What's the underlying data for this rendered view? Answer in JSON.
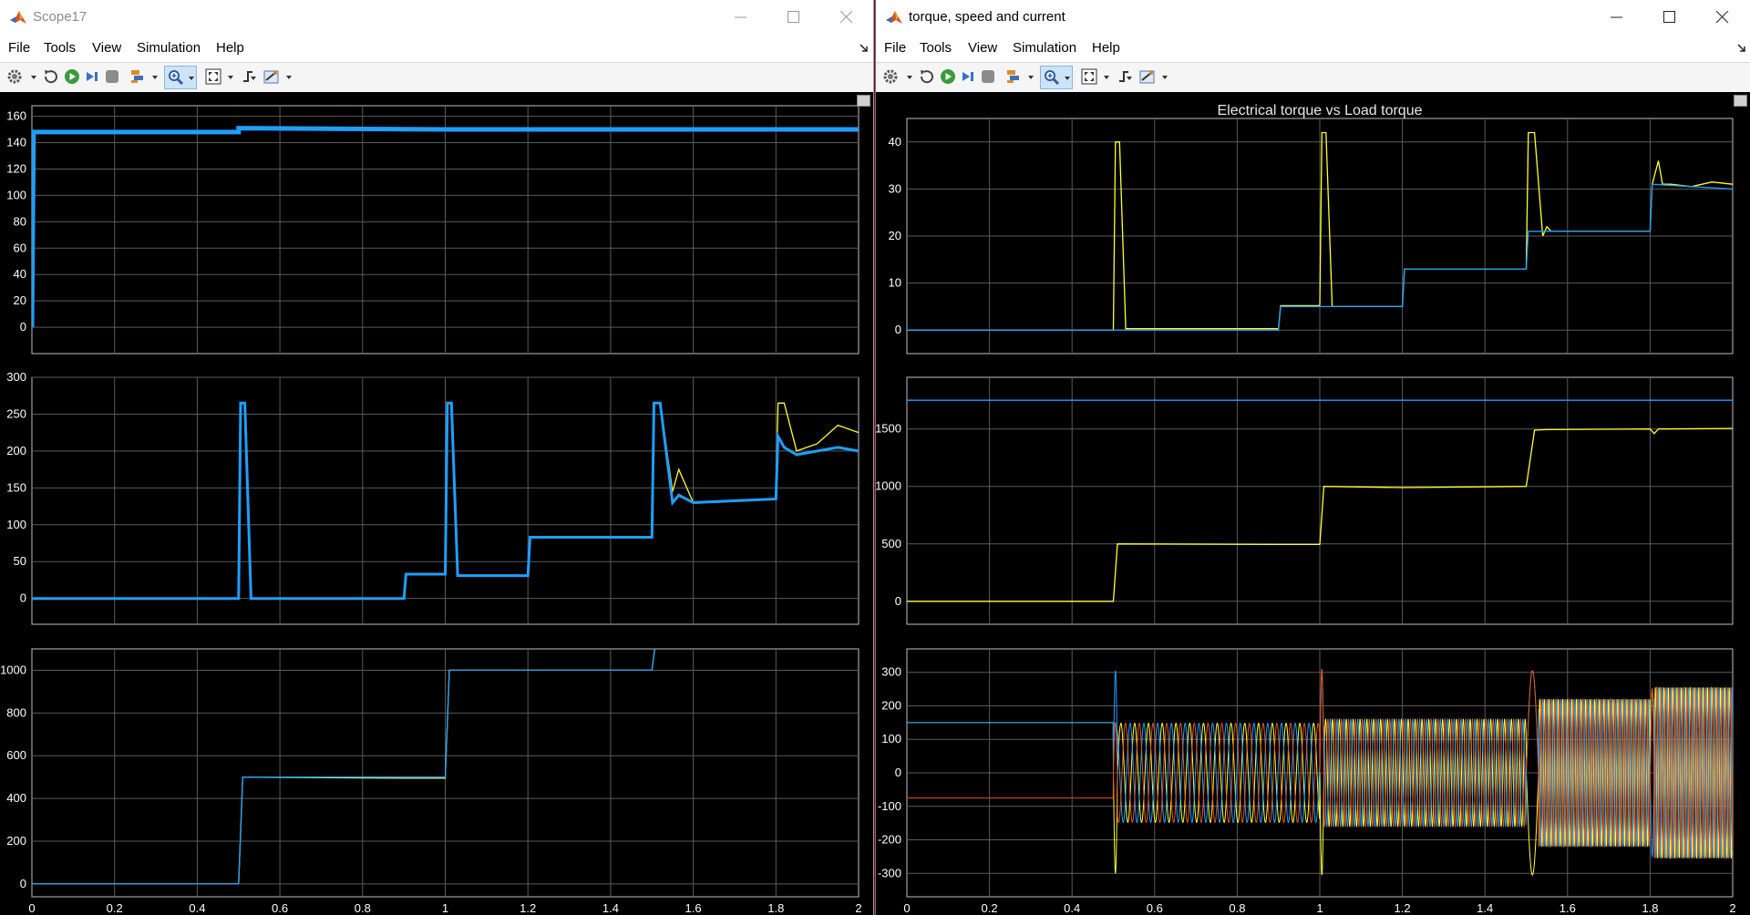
{
  "colors": {
    "blue": "#1e9fff",
    "yellow": "#ffff33",
    "red": "#e6531f",
    "grid": "#5a5a5a",
    "axes": "#c0c0c0"
  },
  "toolbar_icons": [
    "gear-icon",
    "restore-icon",
    "run-icon",
    "step-forward-icon",
    "stop-icon",
    "highlight-icon",
    "zoom-icon",
    "fit-to-view-icon",
    "trigger-icon",
    "measure-icon"
  ],
  "windows": [
    {
      "title": "Scope17",
      "menu": [
        "File",
        "Tools",
        "View",
        "Simulation",
        "Help"
      ],
      "plot_title": "",
      "x_ticks": [
        "0",
        "0.2",
        "0.4",
        "0.6",
        "0.8",
        "1",
        "1.2",
        "1.4",
        "1.6",
        "1.8",
        "2"
      ]
    },
    {
      "title": "torque, speed and current",
      "menu": [
        "File",
        "Tools",
        "View",
        "Simulation",
        "Help"
      ],
      "plot_title": "Electrical torque vs Load torque",
      "x_ticks": [
        "0",
        "0.2",
        "0.4",
        "0.6",
        "0.8",
        "1",
        "1.2",
        "1.4",
        "1.6",
        "1.8",
        "2"
      ]
    }
  ],
  "chart_data": [
    {
      "type": "line",
      "window": "Scope17",
      "panel": 1,
      "xlim": [
        0,
        2
      ],
      "ylim": [
        -20,
        168
      ],
      "y_ticks": [
        0,
        20,
        40,
        60,
        80,
        100,
        120,
        140,
        160
      ],
      "grid": true,
      "series": [
        {
          "color": "blue",
          "x": [
            0,
            0.004,
            0.2,
            0.5,
            0.5,
            1.0,
            1.5,
            1.55,
            2.0
          ],
          "y": [
            0,
            148,
            148,
            148,
            151,
            150,
            150,
            150,
            150
          ]
        }
      ]
    },
    {
      "type": "line",
      "window": "Scope17",
      "panel": 2,
      "xlim": [
        0,
        2
      ],
      "ylim": [
        -35,
        300
      ],
      "y_ticks": [
        0,
        50,
        100,
        150,
        200,
        250,
        300
      ],
      "grid": true,
      "series": [
        {
          "color": "yellow",
          "x": [
            0,
            0.5,
            0.505,
            0.515,
            0.53,
            0.9,
            0.905,
            1.0,
            1.005,
            1.015,
            1.03,
            1.2,
            1.205,
            1.5,
            1.505,
            1.52,
            1.55,
            1.565,
            1.6,
            1.8,
            1.805,
            1.82,
            1.85,
            1.9,
            1.95,
            2.0
          ],
          "y": [
            0,
            0,
            265,
            265,
            0,
            0,
            33,
            33,
            265,
            265,
            31,
            31,
            83,
            83,
            265,
            265,
            145,
            175,
            130,
            135,
            265,
            265,
            200,
            210,
            235,
            225
          ]
        },
        {
          "color": "blue",
          "x": [
            0,
            0.5,
            0.505,
            0.515,
            0.53,
            0.9,
            0.905,
            1.0,
            1.005,
            1.015,
            1.03,
            1.2,
            1.205,
            1.5,
            1.505,
            1.52,
            1.55,
            1.565,
            1.6,
            1.8,
            1.805,
            1.82,
            1.85,
            1.9,
            1.95,
            2.0
          ],
          "y": [
            0,
            0,
            265,
            265,
            0,
            0,
            33,
            33,
            265,
            265,
            31,
            31,
            83,
            83,
            265,
            265,
            130,
            140,
            130,
            135,
            220,
            205,
            195,
            200,
            205,
            200
          ]
        }
      ]
    },
    {
      "type": "line",
      "window": "Scope17",
      "panel": 3,
      "xlim": [
        0,
        2
      ],
      "ylim": [
        -60,
        1100
      ],
      "y_ticks": [
        0,
        200,
        400,
        600,
        800,
        1000
      ],
      "grid": true,
      "series": [
        {
          "color": "yellow",
          "x": [
            0,
            0.5,
            0.51,
            0.9,
            1.0,
            1.01,
            1.5,
            1.51,
            1.52
          ],
          "y": [
            0,
            0,
            500,
            495,
            495,
            1000,
            1000,
            1150,
            1150
          ]
        },
        {
          "color": "blue",
          "x": [
            0,
            0.5,
            0.51,
            1.0,
            1.01,
            1.5,
            1.51,
            1.52
          ],
          "y": [
            0,
            0,
            500,
            500,
            1000,
            1000,
            1150,
            1150
          ]
        }
      ]
    },
    {
      "type": "line",
      "window": "torque, speed and current",
      "panel": 1,
      "title": "Electrical torque vs Load torque",
      "xlim": [
        0,
        2
      ],
      "ylim": [
        -5,
        45
      ],
      "y_ticks": [
        0,
        10,
        20,
        30,
        40
      ],
      "grid": true,
      "series": [
        {
          "color": "yellow",
          "x": [
            0,
            0.5,
            0.505,
            0.515,
            0.53,
            0.9,
            0.905,
            1.0,
            1.005,
            1.015,
            1.03,
            1.2,
            1.205,
            1.5,
            1.505,
            1.52,
            1.54,
            1.55,
            1.56,
            1.57,
            1.8,
            1.805,
            1.82,
            1.83,
            1.85,
            1.9,
            1.95,
            2.0
          ],
          "y": [
            0,
            0,
            40,
            40,
            0.3,
            0.3,
            5.2,
            5.2,
            42,
            42,
            5,
            5,
            13,
            13,
            42,
            42,
            20,
            22,
            21,
            21,
            21,
            31,
            36,
            31,
            31,
            30.5,
            31.5,
            31
          ]
        },
        {
          "color": "blue",
          "x": [
            0,
            0.9,
            0.905,
            1.2,
            1.205,
            1.5,
            1.505,
            1.8,
            1.805,
            2.0
          ],
          "y": [
            0,
            0,
            5,
            5,
            13,
            13,
            21,
            21,
            31,
            30
          ]
        }
      ]
    },
    {
      "type": "line",
      "window": "torque, speed and current",
      "panel": 2,
      "xlim": [
        0,
        2
      ],
      "ylim": [
        -200,
        1950
      ],
      "y_ticks": [
        0,
        500,
        1000,
        1500
      ],
      "grid": true,
      "series": [
        {
          "color": "blue",
          "x": [
            0,
            2.0
          ],
          "y": [
            1750,
            1750
          ]
        },
        {
          "color": "yellow",
          "x": [
            0,
            0.5,
            0.51,
            0.9,
            1.0,
            1.01,
            1.2,
            1.5,
            1.52,
            1.55,
            1.8,
            1.81,
            1.82,
            1.83,
            2.0
          ],
          "y": [
            0,
            0,
            500,
            495,
            495,
            1000,
            990,
            1000,
            1490,
            1495,
            1500,
            1460,
            1500,
            1500,
            1505
          ]
        }
      ]
    },
    {
      "type": "line",
      "window": "torque, speed and current",
      "panel": 3,
      "xlim": [
        0,
        2
      ],
      "ylim": [
        -370,
        370
      ],
      "y_ticks": [
        -300,
        -200,
        -100,
        0,
        100,
        200,
        300
      ],
      "grid": true,
      "note_series": "three-phase currents",
      "series": [
        {
          "color": "yellow",
          "dc": 150
        },
        {
          "color": "blue",
          "dc": 150
        },
        {
          "color": "red",
          "dc": -75
        }
      ],
      "segments": [
        {
          "x0": 0.51,
          "x1": 1.0,
          "amp": 148,
          "freq": 30
        },
        {
          "x0": 1.01,
          "x1": 1.5,
          "amp": 160,
          "freq": 60
        },
        {
          "x0": 1.53,
          "x1": 1.8,
          "amp": 220,
          "freq": 90
        },
        {
          "x0": 1.81,
          "x1": 2.0,
          "amp": 255,
          "freq": 95
        }
      ]
    }
  ]
}
